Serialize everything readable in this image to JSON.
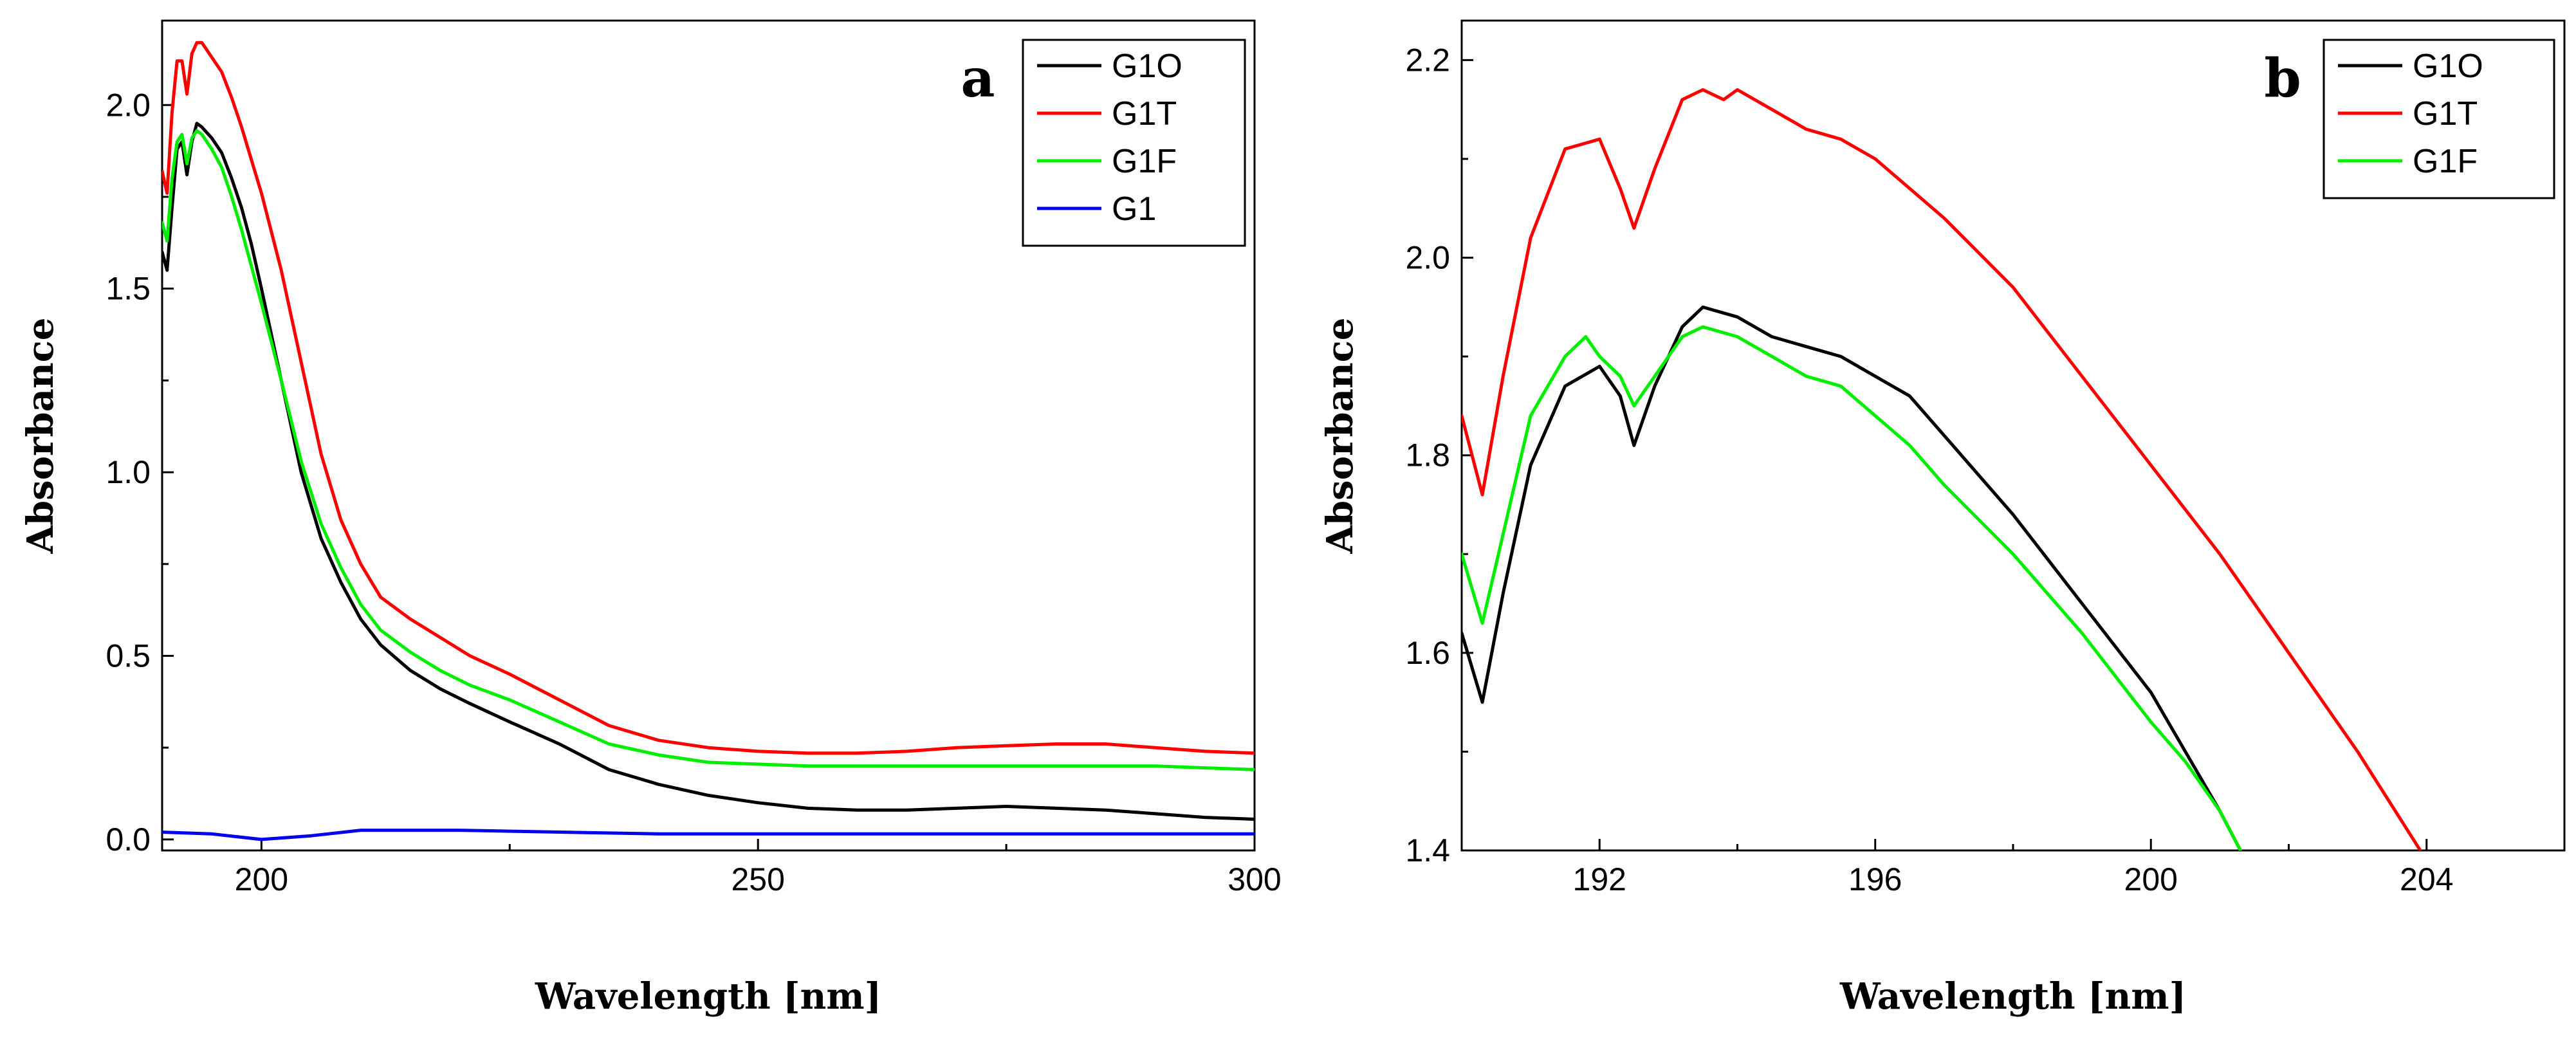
{
  "chart_data": [
    {
      "type": "line",
      "panel_label": "a",
      "xlabel": "Wavelength [nm]",
      "ylabel": "Absorbance",
      "xlim": [
        190,
        300
      ],
      "ylim": [
        -0.03,
        2.23
      ],
      "xticks": [
        200,
        250,
        300
      ],
      "yticks": [
        0.0,
        0.5,
        1.0,
        1.5,
        2.0
      ],
      "xtick_labels": [
        "200",
        "250",
        "300"
      ],
      "ytick_labels": [
        "0.0",
        "0.5",
        "1.0",
        "1.5",
        "2.0"
      ],
      "legend_position": "top-right",
      "series": [
        {
          "name": "G1O",
          "color": "#000000",
          "x": [
            190,
            190.5,
            191,
            191.5,
            192,
            192.5,
            193,
            193.5,
            194,
            195,
            196,
            197,
            198,
            199,
            200,
            202,
            204,
            206,
            208,
            210,
            212,
            215,
            218,
            221,
            225,
            230,
            235,
            240,
            245,
            250,
            255,
            260,
            265,
            270,
            275,
            280,
            285,
            290,
            295,
            300
          ],
          "y": [
            1.6,
            1.55,
            1.72,
            1.88,
            1.9,
            1.81,
            1.9,
            1.95,
            1.94,
            1.91,
            1.87,
            1.8,
            1.72,
            1.62,
            1.5,
            1.25,
            1.0,
            0.82,
            0.7,
            0.6,
            0.53,
            0.46,
            0.41,
            0.37,
            0.32,
            0.26,
            0.19,
            0.15,
            0.12,
            0.1,
            0.085,
            0.08,
            0.08,
            0.085,
            0.09,
            0.085,
            0.08,
            0.07,
            0.06,
            0.055
          ]
        },
        {
          "name": "G1T",
          "color": "#ff0000",
          "x": [
            190,
            190.5,
            191,
            191.5,
            192,
            192.5,
            193,
            193.5,
            194,
            195,
            196,
            197,
            198,
            199,
            200,
            202,
            204,
            206,
            208,
            210,
            212,
            215,
            218,
            221,
            225,
            230,
            235,
            240,
            245,
            250,
            255,
            260,
            265,
            270,
            275,
            280,
            285,
            290,
            295,
            300
          ],
          "y": [
            1.82,
            1.76,
            1.98,
            2.12,
            2.12,
            2.03,
            2.14,
            2.17,
            2.17,
            2.13,
            2.09,
            2.02,
            1.94,
            1.85,
            1.76,
            1.55,
            1.3,
            1.05,
            0.87,
            0.75,
            0.66,
            0.6,
            0.55,
            0.5,
            0.45,
            0.38,
            0.31,
            0.27,
            0.25,
            0.24,
            0.235,
            0.235,
            0.24,
            0.25,
            0.255,
            0.26,
            0.26,
            0.25,
            0.24,
            0.235
          ]
        },
        {
          "name": "G1F",
          "color": "#00ee00",
          "x": [
            190,
            190.5,
            191,
            191.5,
            192,
            192.5,
            193,
            193.5,
            194,
            195,
            196,
            197,
            198,
            199,
            200,
            202,
            204,
            206,
            208,
            210,
            212,
            215,
            218,
            221,
            225,
            230,
            235,
            240,
            245,
            250,
            255,
            260,
            265,
            270,
            275,
            280,
            285,
            290,
            295,
            300
          ],
          "y": [
            1.68,
            1.63,
            1.8,
            1.9,
            1.92,
            1.84,
            1.91,
            1.93,
            1.92,
            1.88,
            1.83,
            1.75,
            1.66,
            1.56,
            1.46,
            1.25,
            1.03,
            0.86,
            0.74,
            0.64,
            0.57,
            0.51,
            0.46,
            0.42,
            0.38,
            0.32,
            0.26,
            0.23,
            0.21,
            0.205,
            0.2,
            0.2,
            0.2,
            0.2,
            0.2,
            0.2,
            0.2,
            0.2,
            0.195,
            0.19
          ]
        },
        {
          "name": "G1",
          "color": "#0000ee",
          "x": [
            190,
            195,
            200,
            205,
            210,
            220,
            230,
            240,
            250,
            260,
            270,
            280,
            290,
            300
          ],
          "y": [
            0.02,
            0.015,
            0.0,
            0.01,
            0.025,
            0.025,
            0.02,
            0.015,
            0.015,
            0.015,
            0.015,
            0.015,
            0.015,
            0.015
          ]
        }
      ]
    },
    {
      "type": "line",
      "panel_label": "b",
      "xlabel": "Wavelength [nm]",
      "ylabel": "Absorbance",
      "xlim": [
        190,
        206
      ],
      "ylim": [
        1.4,
        2.24
      ],
      "xticks": [
        192,
        196,
        200,
        204
      ],
      "yticks": [
        1.4,
        1.6,
        1.8,
        2.0,
        2.2
      ],
      "xtick_labels": [
        "192",
        "196",
        "200",
        "204"
      ],
      "ytick_labels": [
        "1.4",
        "1.6",
        "1.8",
        "2.0",
        "2.2"
      ],
      "legend_position": "top-right",
      "series": [
        {
          "name": "G1O",
          "color": "#000000",
          "x": [
            190,
            190.3,
            190.6,
            191,
            191.5,
            192,
            192.3,
            192.5,
            192.8,
            193.2,
            193.5,
            194,
            194.5,
            195,
            195.5,
            196,
            196.5,
            197,
            198,
            199,
            200,
            200.5,
            201,
            201.3
          ],
          "y": [
            1.62,
            1.55,
            1.66,
            1.79,
            1.87,
            1.89,
            1.86,
            1.81,
            1.87,
            1.93,
            1.95,
            1.94,
            1.92,
            1.91,
            1.9,
            1.88,
            1.86,
            1.82,
            1.74,
            1.65,
            1.56,
            1.5,
            1.44,
            1.4
          ]
        },
        {
          "name": "G1T",
          "color": "#ff0000",
          "x": [
            190,
            190.3,
            190.6,
            191,
            191.5,
            192,
            192.3,
            192.5,
            192.8,
            193.2,
            193.5,
            193.8,
            194,
            194.5,
            195,
            195.5,
            196,
            197,
            198,
            199,
            200,
            201,
            202,
            203,
            204
          ],
          "y": [
            1.84,
            1.76,
            1.88,
            2.02,
            2.11,
            2.12,
            2.07,
            2.03,
            2.09,
            2.16,
            2.17,
            2.16,
            2.17,
            2.15,
            2.13,
            2.12,
            2.1,
            2.04,
            1.97,
            1.88,
            1.79,
            1.7,
            1.6,
            1.5,
            1.39
          ]
        },
        {
          "name": "G1F",
          "color": "#00ee00",
          "x": [
            190,
            190.3,
            190.6,
            191,
            191.5,
            191.8,
            192,
            192.3,
            192.5,
            192.8,
            193.2,
            193.5,
            194,
            194.5,
            195,
            195.5,
            196,
            196.5,
            197,
            198,
            199,
            200,
            200.5,
            201,
            201.3
          ],
          "y": [
            1.7,
            1.63,
            1.72,
            1.84,
            1.9,
            1.92,
            1.9,
            1.88,
            1.85,
            1.88,
            1.92,
            1.93,
            1.92,
            1.9,
            1.88,
            1.87,
            1.84,
            1.81,
            1.77,
            1.7,
            1.62,
            1.53,
            1.49,
            1.44,
            1.4
          ]
        }
      ]
    }
  ]
}
